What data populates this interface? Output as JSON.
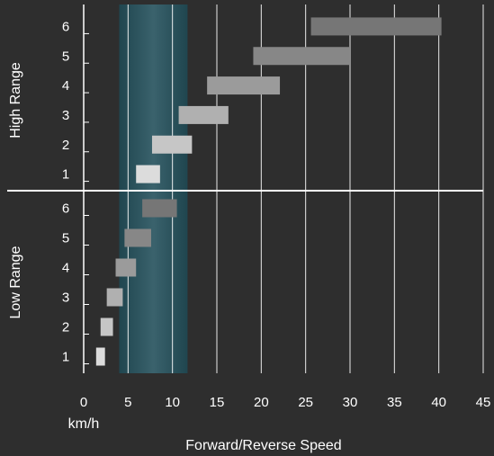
{
  "chart_data": {
    "type": "bar",
    "orientation": "horizontal",
    "subtype": "range",
    "xlabel": "Forward/Reverse Speed",
    "x_unit": "km/h",
    "xlim": [
      0,
      45
    ],
    "x_ticks": [
      0,
      5,
      10,
      15,
      20,
      25,
      30,
      35,
      40,
      45
    ],
    "grid": true,
    "highlight_band": {
      "start": 4,
      "end": 11.7,
      "color": "#1d4a55"
    },
    "groups": [
      {
        "name": "High Range",
        "categories": [
          "1",
          "2",
          "3",
          "4",
          "5",
          "6"
        ],
        "ranges": [
          [
            5.9,
            8.6
          ],
          [
            7.7,
            12.2
          ],
          [
            10.7,
            16.3
          ],
          [
            13.9,
            22.1
          ],
          [
            19.1,
            30.0
          ],
          [
            25.6,
            40.3
          ]
        ]
      },
      {
        "name": "Low Range",
        "categories": [
          "1",
          "2",
          "3",
          "4",
          "5",
          "6"
        ],
        "ranges": [
          [
            1.4,
            2.4
          ],
          [
            1.9,
            3.3
          ],
          [
            2.6,
            4.4
          ],
          [
            3.6,
            5.9
          ],
          [
            4.6,
            7.6
          ],
          [
            6.6,
            10.5
          ]
        ]
      }
    ],
    "colors": {
      "background": "#2e2e2e",
      "grid": "#ffffff",
      "text": "#ffffff",
      "bar_shades": [
        "#dcdcdc",
        "#c6c6c6",
        "#b0b0b0",
        "#9b9b9b",
        "#878787",
        "#767676"
      ]
    }
  }
}
